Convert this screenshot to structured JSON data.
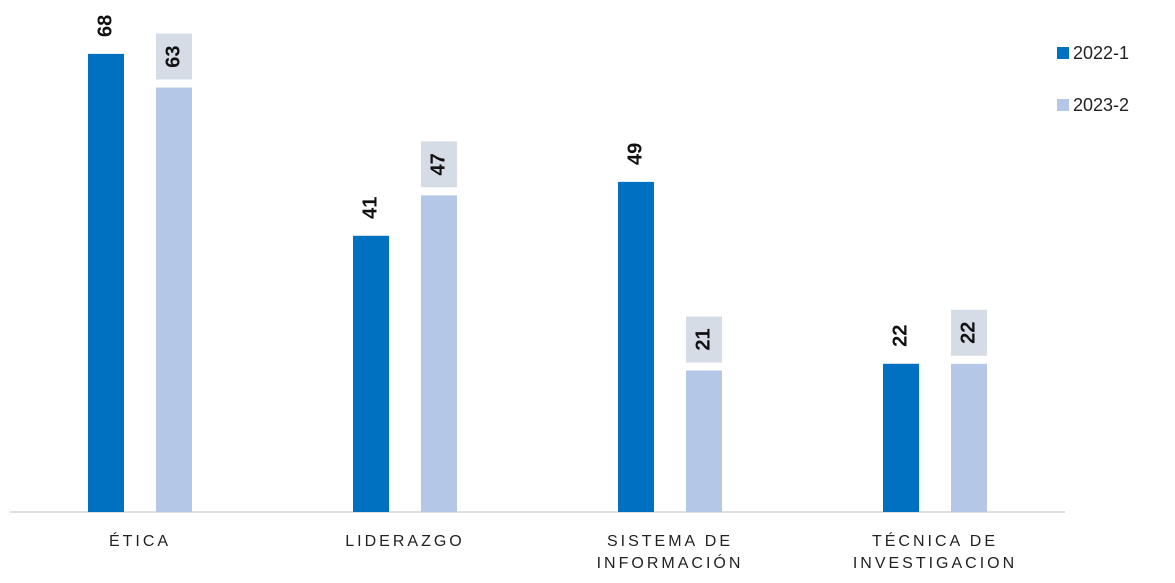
{
  "chart_data": {
    "type": "bar",
    "categories": [
      "ÉTICA",
      "LIDERAZGO",
      "SISTEMA DE INFORMACIÓN",
      "TÉCNICA DE INVESTIGACION"
    ],
    "series": [
      {
        "name": "2022-1",
        "color": "#0070c0",
        "values": [
          68,
          41,
          49,
          22
        ]
      },
      {
        "name": "2023-2",
        "color": "#b4c7e7",
        "values": [
          63,
          47,
          21,
          22
        ]
      }
    ],
    "ylim": [
      0,
      76
    ],
    "legend": "right"
  }
}
